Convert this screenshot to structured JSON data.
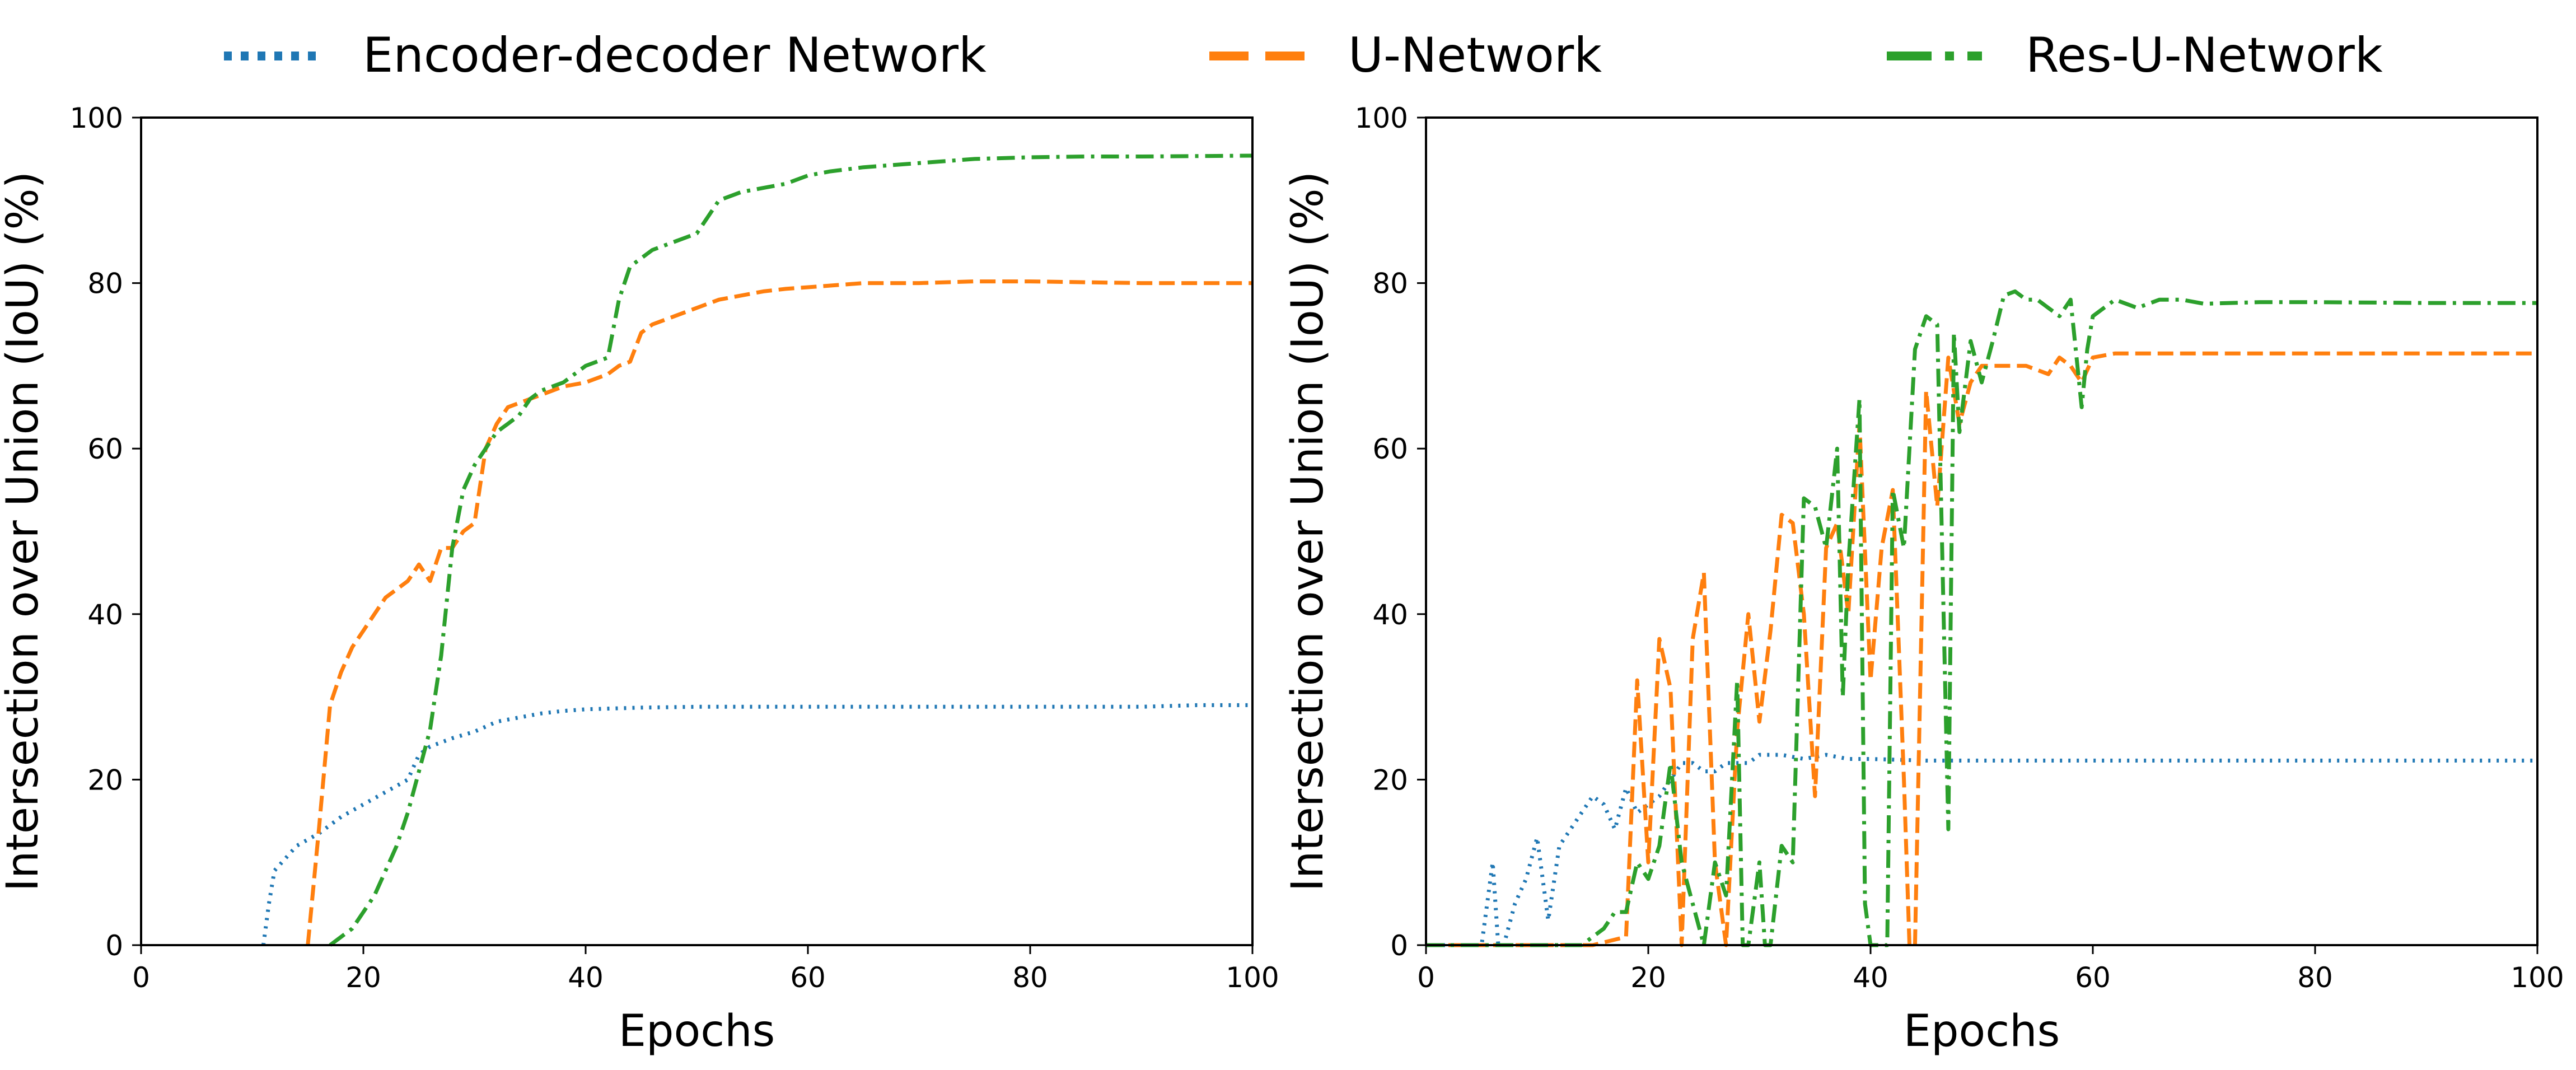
{
  "legend": [
    {
      "name": "Encoder-decoder Network",
      "color": "#1f77b4",
      "dash": "dotted"
    },
    {
      "name": "U-Network",
      "color": "#ff7f0e",
      "dash": "dashed"
    },
    {
      "name": "Res-U-Network",
      "color": "#2ca02c",
      "dash": "dashdot"
    }
  ],
  "chart_data": [
    {
      "type": "line",
      "xlabel": "Epochs",
      "ylabel": "Intersection over Union (IoU) (%)",
      "xlim": [
        0,
        100
      ],
      "ylim": [
        0,
        100
      ],
      "xticks": [
        0,
        20,
        40,
        60,
        80,
        100
      ],
      "yticks": [
        0,
        20,
        40,
        60,
        80,
        100
      ],
      "grid": false,
      "series": [
        {
          "name": "Encoder-decoder Network",
          "color": "#1f77b4",
          "points": [
            [
              11,
              0
            ],
            [
              11.5,
              5
            ],
            [
              12,
              9
            ],
            [
              13,
              10.5
            ],
            [
              14,
              12
            ],
            [
              16,
              13.5
            ],
            [
              18,
              15.5
            ],
            [
              20,
              17
            ],
            [
              22,
              18.5
            ],
            [
              24,
              20
            ],
            [
              25,
              23
            ],
            [
              26,
              24
            ],
            [
              28,
              25
            ],
            [
              30,
              25.8
            ],
            [
              32,
              27
            ],
            [
              34,
              27.5
            ],
            [
              36,
              28
            ],
            [
              38,
              28.3
            ],
            [
              40,
              28.5
            ],
            [
              45,
              28.7
            ],
            [
              50,
              28.8
            ],
            [
              60,
              28.8
            ],
            [
              65,
              28.8
            ],
            [
              70,
              28.8
            ],
            [
              80,
              28.8
            ],
            [
              90,
              28.8
            ],
            [
              95,
              29
            ],
            [
              100,
              29
            ]
          ]
        },
        {
          "name": "U-Network",
          "color": "#ff7f0e",
          "points": [
            [
              15,
              0
            ],
            [
              16,
              14
            ],
            [
              17,
              29
            ],
            [
              18,
              33
            ],
            [
              19,
              36
            ],
            [
              20,
              38
            ],
            [
              21,
              40
            ],
            [
              22,
              42
            ],
            [
              23,
              43
            ],
            [
              24,
              44
            ],
            [
              25,
              46
            ],
            [
              26,
              44
            ],
            [
              27,
              48
            ],
            [
              28,
              48
            ],
            [
              29,
              50
            ],
            [
              30,
              51
            ],
            [
              31,
              60
            ],
            [
              32,
              63
            ],
            [
              33,
              65
            ],
            [
              34,
              65.5
            ],
            [
              35,
              66
            ],
            [
              36,
              66.5
            ],
            [
              37,
              67
            ],
            [
              38,
              67.5
            ],
            [
              40,
              68
            ],
            [
              42,
              69
            ],
            [
              43,
              70
            ],
            [
              44,
              70.5
            ],
            [
              45,
              74
            ],
            [
              46,
              75
            ],
            [
              48,
              76
            ],
            [
              50,
              77
            ],
            [
              52,
              78
            ],
            [
              54,
              78.5
            ],
            [
              56,
              79
            ],
            [
              58,
              79.3
            ],
            [
              60,
              79.5
            ],
            [
              65,
              80
            ],
            [
              70,
              80
            ],
            [
              75,
              80.2
            ],
            [
              80,
              80.2
            ],
            [
              90,
              80
            ],
            [
              100,
              80
            ]
          ]
        },
        {
          "name": "Res-U-Network",
          "color": "#2ca02c",
          "points": [
            [
              17,
              0
            ],
            [
              18,
              1
            ],
            [
              19,
              2
            ],
            [
              20,
              4
            ],
            [
              21,
              6
            ],
            [
              22,
              9
            ],
            [
              23,
              12
            ],
            [
              24,
              16
            ],
            [
              25,
              21
            ],
            [
              26,
              26
            ],
            [
              27,
              35
            ],
            [
              28,
              48
            ],
            [
              29,
              55
            ],
            [
              30,
              58
            ],
            [
              31,
              60
            ],
            [
              32,
              62
            ],
            [
              33,
              63
            ],
            [
              34,
              64
            ],
            [
              35,
              66
            ],
            [
              36,
              67
            ],
            [
              38,
              68
            ],
            [
              40,
              70
            ],
            [
              42,
              71
            ],
            [
              43,
              78
            ],
            [
              44,
              82
            ],
            [
              46,
              84
            ],
            [
              48,
              85
            ],
            [
              50,
              86
            ],
            [
              51,
              88
            ],
            [
              52,
              90
            ],
            [
              54,
              91
            ],
            [
              56,
              91.5
            ],
            [
              58,
              92
            ],
            [
              60,
              93
            ],
            [
              62,
              93.5
            ],
            [
              65,
              94
            ],
            [
              70,
              94.5
            ],
            [
              75,
              95
            ],
            [
              80,
              95.2
            ],
            [
              85,
              95.3
            ],
            [
              90,
              95.3
            ],
            [
              100,
              95.4
            ]
          ]
        }
      ]
    },
    {
      "type": "line",
      "xlabel": "Epochs",
      "ylabel": "Intersection over Union (IoU) (%)",
      "xlim": [
        0,
        100
      ],
      "ylim": [
        0,
        100
      ],
      "xticks": [
        0,
        20,
        40,
        60,
        80,
        100
      ],
      "yticks": [
        0,
        20,
        40,
        60,
        80,
        100
      ],
      "grid": false,
      "series": [
        {
          "name": "Encoder-decoder Network",
          "color": "#1f77b4",
          "points": [
            [
              0,
              0
            ],
            [
              5,
              0
            ],
            [
              6,
              10
            ],
            [
              6.5,
              0
            ],
            [
              7,
              0
            ],
            [
              8,
              5
            ],
            [
              9,
              8
            ],
            [
              10,
              13
            ],
            [
              11,
              3
            ],
            [
              12,
              12
            ],
            [
              13,
              14
            ],
            [
              14,
              16
            ],
            [
              15,
              18
            ],
            [
              16,
              17
            ],
            [
              17,
              14
            ],
            [
              18,
              19
            ],
            [
              19,
              16
            ],
            [
              20,
              17
            ],
            [
              21,
              18
            ],
            [
              22,
              20
            ],
            [
              23,
              22
            ],
            [
              24,
              22
            ],
            [
              25,
              21
            ],
            [
              26,
              21
            ],
            [
              27,
              22
            ],
            [
              28,
              22
            ],
            [
              29,
              22
            ],
            [
              30,
              23
            ],
            [
              32,
              23
            ],
            [
              34,
              22.5
            ],
            [
              36,
              23
            ],
            [
              38,
              22.5
            ],
            [
              40,
              22.5
            ],
            [
              45,
              22.3
            ],
            [
              50,
              22.3
            ],
            [
              60,
              22.3
            ],
            [
              70,
              22.3
            ],
            [
              80,
              22.3
            ],
            [
              90,
              22.3
            ],
            [
              100,
              22.3
            ]
          ]
        },
        {
          "name": "U-Network",
          "color": "#ff7f0e",
          "points": [
            [
              0,
              0
            ],
            [
              15,
              0
            ],
            [
              18,
              1
            ],
            [
              19,
              32
            ],
            [
              20,
              10
            ],
            [
              21,
              37
            ],
            [
              22,
              31
            ],
            [
              23,
              0
            ],
            [
              24,
              37
            ],
            [
              25,
              45
            ],
            [
              26,
              10
            ],
            [
              27,
              0
            ],
            [
              28,
              26
            ],
            [
              29,
              40
            ],
            [
              30,
              27
            ],
            [
              31,
              38
            ],
            [
              32,
              52
            ],
            [
              33,
              51
            ],
            [
              34,
              40
            ],
            [
              35,
              18
            ],
            [
              36,
              48
            ],
            [
              37,
              51
            ],
            [
              38,
              40
            ],
            [
              39,
              63
            ],
            [
              40,
              32
            ],
            [
              41,
              48
            ],
            [
              42,
              55
            ],
            [
              43,
              20
            ],
            [
              43.5,
              0
            ],
            [
              44,
              0
            ],
            [
              45,
              67
            ],
            [
              46,
              53
            ],
            [
              47,
              71
            ],
            [
              48,
              63
            ],
            [
              49,
              68
            ],
            [
              50,
              70
            ],
            [
              52,
              70
            ],
            [
              54,
              70
            ],
            [
              56,
              69
            ],
            [
              57,
              71
            ],
            [
              58,
              70
            ],
            [
              59,
              68
            ],
            [
              60,
              71
            ],
            [
              62,
              71.5
            ],
            [
              65,
              71.5
            ],
            [
              70,
              71.5
            ],
            [
              80,
              71.5
            ],
            [
              90,
              71.5
            ],
            [
              100,
              71.5
            ]
          ]
        },
        {
          "name": "Res-U-Network",
          "color": "#2ca02c",
          "points": [
            [
              0,
              0
            ],
            [
              14,
              0
            ],
            [
              16,
              2
            ],
            [
              17,
              4
            ],
            [
              18,
              4
            ],
            [
              19,
              10
            ],
            [
              20,
              8
            ],
            [
              21,
              12
            ],
            [
              22,
              22
            ],
            [
              23,
              10
            ],
            [
              24,
              5
            ],
            [
              25,
              0
            ],
            [
              26,
              10
            ],
            [
              27,
              6
            ],
            [
              28,
              32
            ],
            [
              28.5,
              0
            ],
            [
              29,
              0
            ],
            [
              30,
              10
            ],
            [
              30.5,
              0
            ],
            [
              31,
              0
            ],
            [
              32,
              12
            ],
            [
              33,
              10
            ],
            [
              34,
              54
            ],
            [
              35,
              53
            ],
            [
              36,
              48
            ],
            [
              37,
              60
            ],
            [
              37.5,
              30
            ],
            [
              38,
              46
            ],
            [
              39,
              66
            ],
            [
              39.5,
              5
            ],
            [
              40,
              0
            ],
            [
              41,
              0
            ],
            [
              41.5,
              0
            ],
            [
              42,
              55
            ],
            [
              43,
              48
            ],
            [
              44,
              72
            ],
            [
              45,
              76
            ],
            [
              46,
              75
            ],
            [
              47,
              14
            ],
            [
              47.5,
              74
            ],
            [
              48,
              62
            ],
            [
              49,
              73
            ],
            [
              50,
              68
            ],
            [
              51,
              73
            ],
            [
              52,
              78.5
            ],
            [
              53,
              79
            ],
            [
              54,
              78
            ],
            [
              55,
              78
            ],
            [
              56,
              77
            ],
            [
              57,
              76
            ],
            [
              58,
              78
            ],
            [
              59,
              65
            ],
            [
              59.5,
              72
            ],
            [
              60,
              76
            ],
            [
              62,
              78
            ],
            [
              64,
              77
            ],
            [
              66,
              78
            ],
            [
              68,
              78
            ],
            [
              70,
              77.5
            ],
            [
              75,
              77.7
            ],
            [
              80,
              77.7
            ],
            [
              90,
              77.6
            ],
            [
              100,
              77.6
            ]
          ]
        }
      ]
    }
  ]
}
